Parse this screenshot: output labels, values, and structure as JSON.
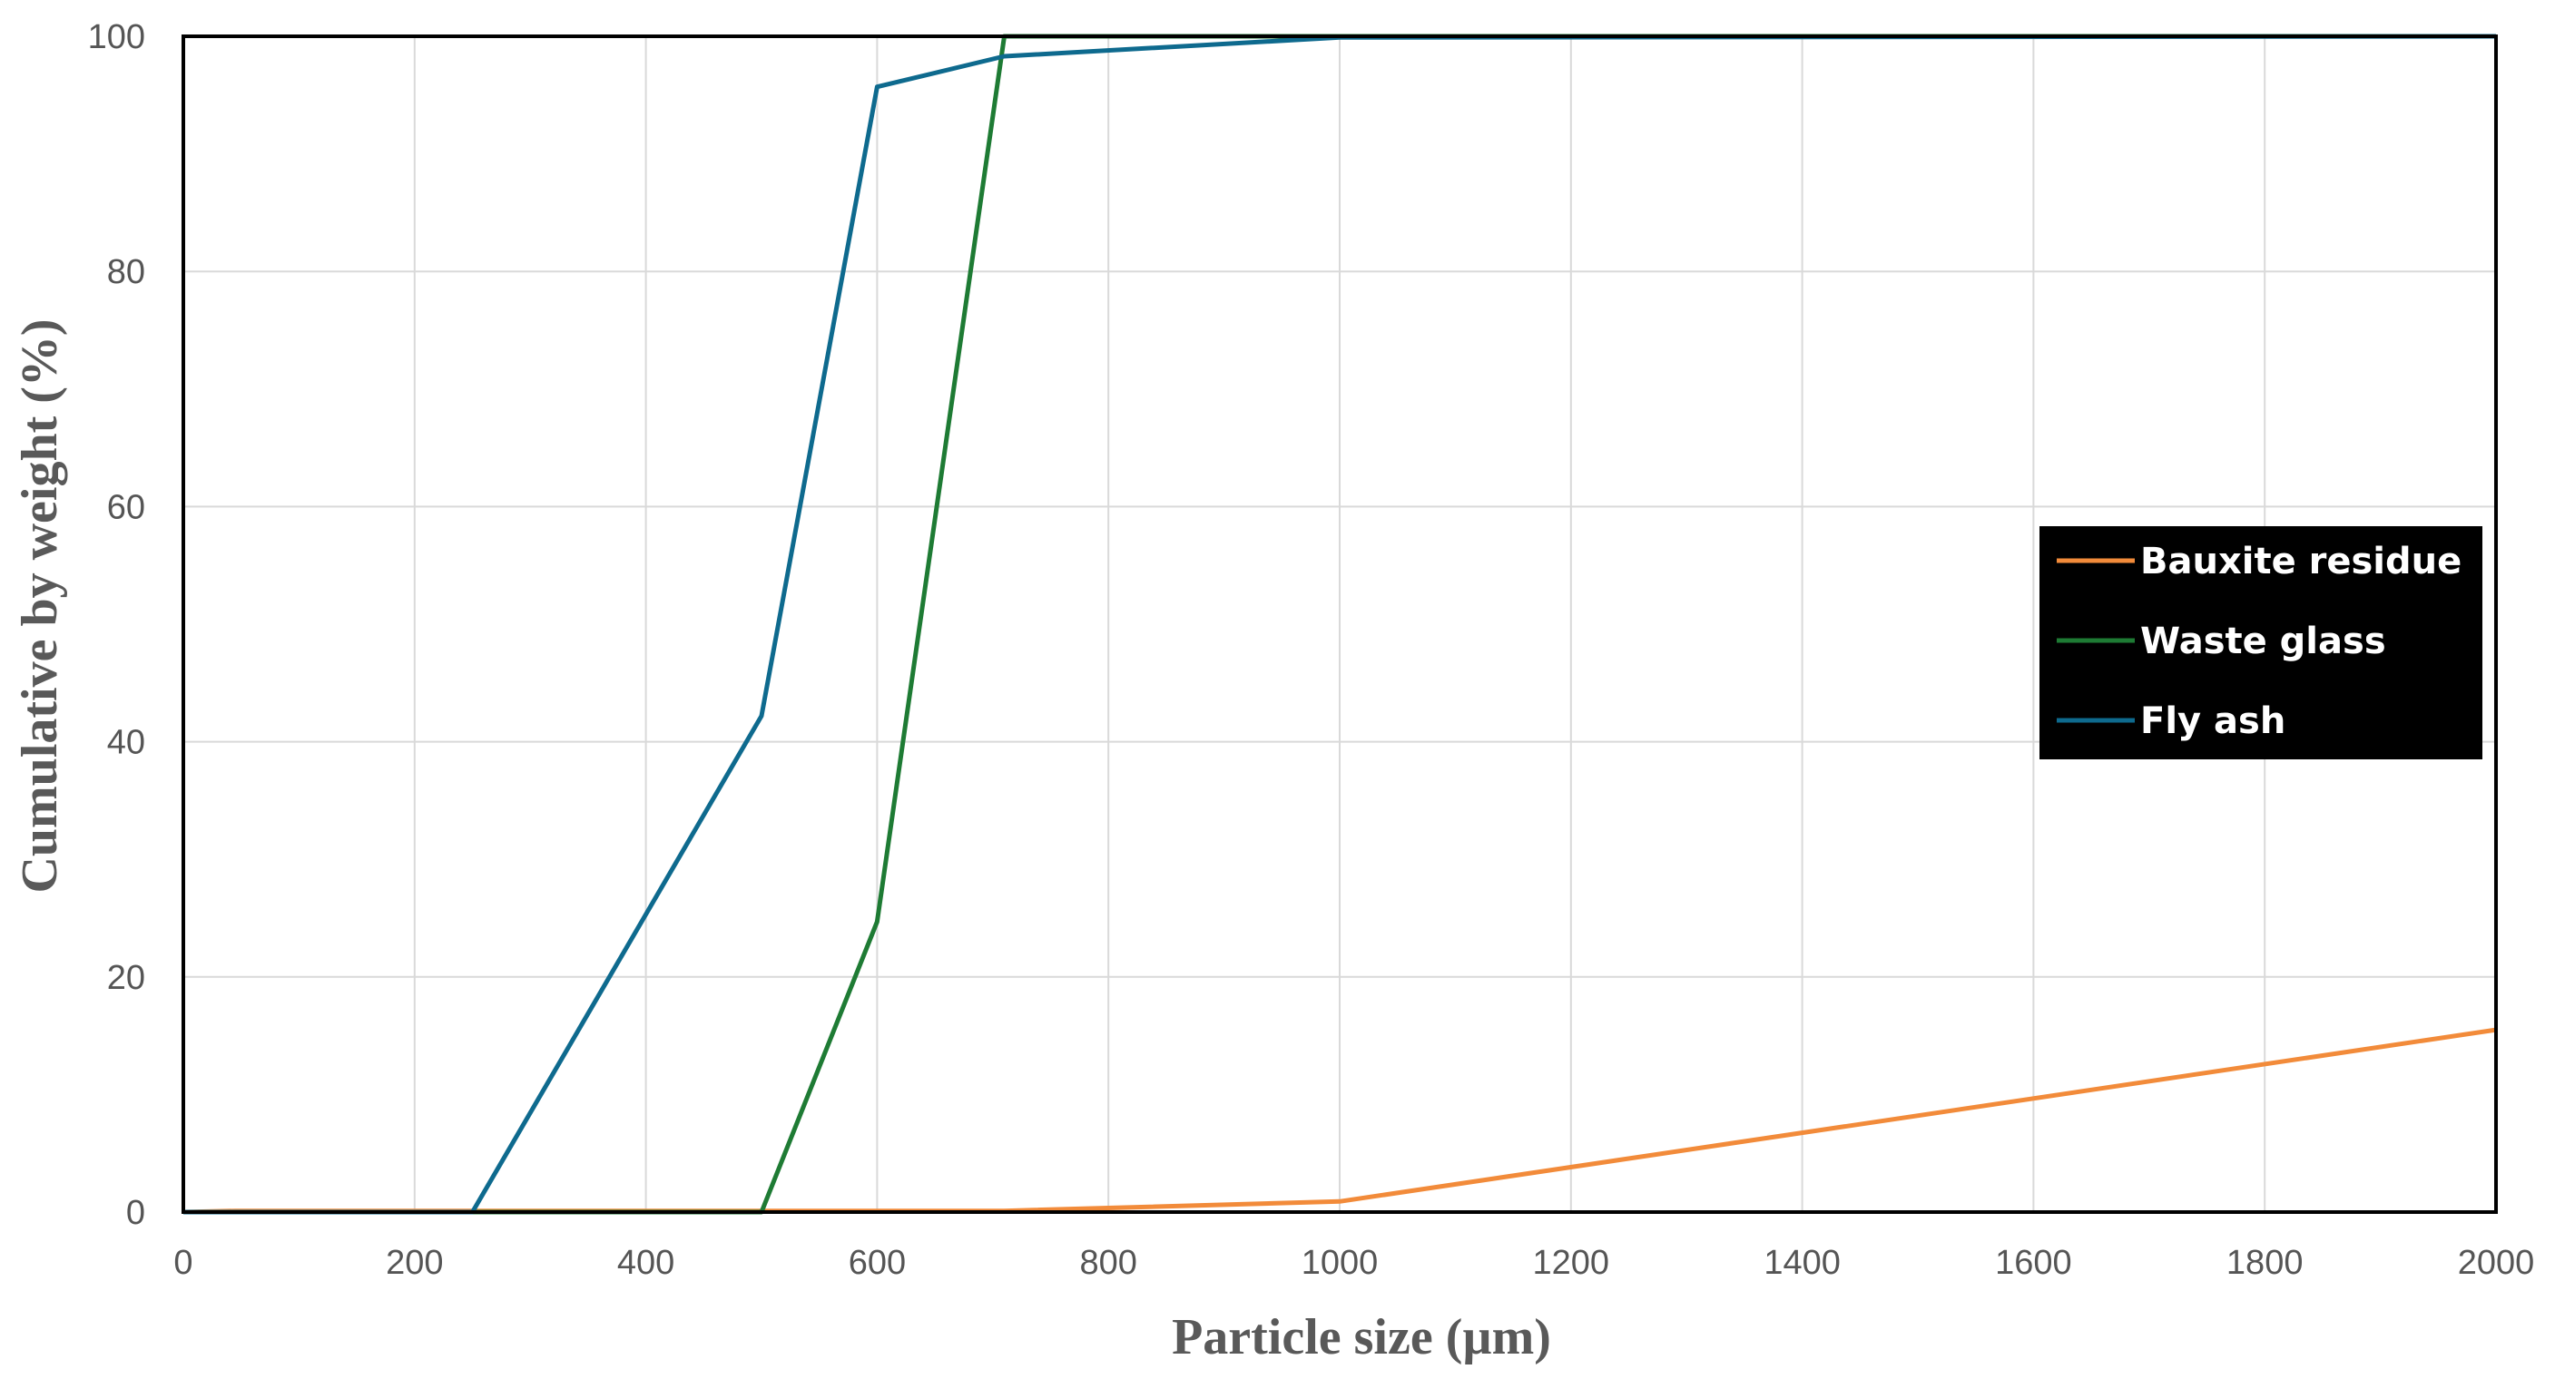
{
  "chart_data": {
    "type": "line",
    "title": "",
    "xlabel": "Particle size (µm)",
    "ylabel": "Cumulative by weight (%)",
    "xlim": [
      0,
      2000
    ],
    "ylim": [
      0,
      100
    ],
    "x_ticks": [
      0,
      200,
      400,
      600,
      800,
      1000,
      1200,
      1400,
      1600,
      1800,
      2000
    ],
    "y_ticks": [
      0,
      20,
      40,
      60,
      80,
      100
    ],
    "grid": true,
    "legend_position": "right",
    "series": [
      {
        "name": "Bauxite residue",
        "color": "#F28B3A",
        "x": [
          0,
          45,
          250,
          500,
          600,
          710,
          1000,
          2000
        ],
        "y": [
          0,
          0.1,
          0.1,
          0.1,
          0.1,
          0.1,
          0.9,
          15.5
        ]
      },
      {
        "name": "Waste glass",
        "color": "#1E7B34",
        "x": [
          0,
          250,
          500,
          600,
          710,
          1000,
          2000
        ],
        "y": [
          0,
          0,
          0,
          24.7,
          100,
          100,
          100
        ]
      },
      {
        "name": "Fly ash",
        "color": "#0E6A8E",
        "x": [
          0,
          250,
          500,
          600,
          710,
          1000,
          2000
        ],
        "y": [
          0,
          0,
          42.2,
          95.7,
          98.3,
          99.9,
          100
        ]
      }
    ]
  }
}
